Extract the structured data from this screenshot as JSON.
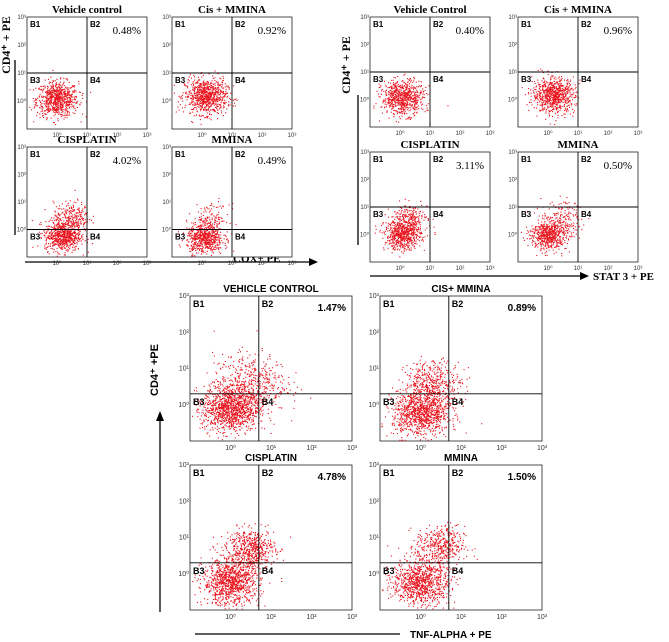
{
  "figure": {
    "accent_color": "#e8141e",
    "axis_color": "#000000",
    "quadrant_labels": [
      "B1",
      "B2",
      "B3",
      "B4"
    ]
  },
  "chart_data": [
    {
      "type": "scatter",
      "panel_group": "cox",
      "title": "Vehicle control",
      "q2_percent": "0.48%",
      "x_tick_labels": [
        "10⁰",
        "10¹",
        "10²",
        "10³"
      ],
      "y_tick_labels": [
        "10⁰",
        "10¹",
        "10²",
        "10³"
      ],
      "xscale": "log",
      "yscale": "log",
      "xlim": [
        0.1,
        1000
      ],
      "ylim": [
        0.1,
        1000
      ],
      "gates": {
        "x": 10,
        "y": 10
      },
      "clusters": [
        {
          "x": 1.0,
          "y": 1.2,
          "spread": 0.35,
          "points": 750
        }
      ]
    },
    {
      "type": "scatter",
      "panel_group": "cox",
      "title": "Cis + MMINA",
      "q2_percent": "0.92%",
      "x_tick_labels": [
        "10⁰",
        "10¹",
        "10²",
        "10³"
      ],
      "y_tick_labels": [
        "10⁰",
        "10¹",
        "10²",
        "10³"
      ],
      "xscale": "log",
      "yscale": "log",
      "xlim": [
        0.1,
        1000
      ],
      "ylim": [
        0.1,
        1000
      ],
      "gates": {
        "x": 10,
        "y": 10
      },
      "clusters": [
        {
          "x": 1.3,
          "y": 1.5,
          "spread": 0.35,
          "points": 800
        }
      ]
    },
    {
      "type": "scatter",
      "panel_group": "cox",
      "title": "CISPLATIN",
      "q2_percent": "4.02%",
      "x_tick_labels": [
        "10⁰",
        "10¹",
        "10²",
        "10³"
      ],
      "y_tick_labels": [
        "10⁰",
        "10¹",
        "10²",
        "10³"
      ],
      "xscale": "log",
      "yscale": "log",
      "xlim": [
        0.1,
        1000
      ],
      "ylim": [
        0.1,
        1000
      ],
      "gates": {
        "x": 10,
        "y": 1
      },
      "clusters": [
        {
          "x": 1.5,
          "y": 0.6,
          "spread": 0.3,
          "points": 650
        },
        {
          "x": 3,
          "y": 3,
          "spread": 0.3,
          "points": 250
        }
      ]
    },
    {
      "type": "scatter",
      "panel_group": "cox",
      "title": "MMINA",
      "q2_percent": "0.49%",
      "x_tick_labels": [
        "10⁰",
        "10¹",
        "10²",
        "10³"
      ],
      "y_tick_labels": [
        "10⁰",
        "10¹",
        "10²",
        "10³"
      ],
      "xscale": "log",
      "yscale": "log",
      "xlim": [
        0.1,
        1000
      ],
      "ylim": [
        0.1,
        1000
      ],
      "gates": {
        "x": 10,
        "y": 1
      },
      "clusters": [
        {
          "x": 1.2,
          "y": 0.5,
          "spread": 0.3,
          "points": 600
        },
        {
          "x": 2,
          "y": 2.5,
          "spread": 0.3,
          "points": 120
        }
      ]
    },
    {
      "type": "scatter",
      "panel_group": "stat3",
      "title": "Vehicle Control",
      "q2_percent": "0.40%",
      "x_tick_labels": [
        "10⁰",
        "10¹",
        "10²",
        "10³"
      ],
      "y_tick_labels": [
        "10⁰",
        "10¹",
        "10²",
        "10³"
      ],
      "xscale": "log",
      "yscale": "log",
      "xlim": [
        0.1,
        1000
      ],
      "ylim": [
        0.1,
        1000
      ],
      "gates": {
        "x": 10,
        "y": 10
      },
      "clusters": [
        {
          "x": 1.2,
          "y": 1.2,
          "spread": 0.35,
          "points": 700
        }
      ]
    },
    {
      "type": "scatter",
      "panel_group": "stat3",
      "title": "Cis + MMINA",
      "q2_percent": "0.96%",
      "x_tick_labels": [
        "10⁰",
        "10¹",
        "10²",
        "10³"
      ],
      "y_tick_labels": [
        "10⁰",
        "10¹",
        "10²",
        "10³"
      ],
      "xscale": "log",
      "yscale": "log",
      "xlim": [
        0.1,
        1000
      ],
      "ylim": [
        0.1,
        1000
      ],
      "gates": {
        "x": 10,
        "y": 10
      },
      "clusters": [
        {
          "x": 1.5,
          "y": 1.5,
          "spread": 0.35,
          "points": 750
        }
      ]
    },
    {
      "type": "scatter",
      "panel_group": "stat3",
      "title": "CISPLATIN",
      "q2_percent": "3.11%",
      "x_tick_labels": [
        "10⁰",
        "10¹",
        "10²",
        "10³"
      ],
      "y_tick_labels": [
        "10⁰",
        "10¹",
        "10²",
        "10³"
      ],
      "xscale": "log",
      "yscale": "log",
      "xlim": [
        0.1,
        1000
      ],
      "ylim": [
        0.1,
        1000
      ],
      "gates": {
        "x": 10,
        "y": 10
      },
      "clusters": [
        {
          "x": 1.2,
          "y": 1.0,
          "spread": 0.3,
          "points": 600
        },
        {
          "x": 2,
          "y": 4,
          "spread": 0.3,
          "points": 220
        }
      ]
    },
    {
      "type": "scatter",
      "panel_group": "stat3",
      "title": "MMINA",
      "q2_percent": "0.50%",
      "x_tick_labels": [
        "10⁰",
        "10¹",
        "10²",
        "10³"
      ],
      "y_tick_labels": [
        "10⁰",
        "10¹",
        "10²",
        "10³"
      ],
      "xscale": "log",
      "yscale": "log",
      "xlim": [
        0.1,
        1000
      ],
      "ylim": [
        0.1,
        1000
      ],
      "gates": {
        "x": 10,
        "y": 10
      },
      "clusters": [
        {
          "x": 1.0,
          "y": 1.0,
          "spread": 0.3,
          "points": 600
        },
        {
          "x": 3,
          "y": 4,
          "spread": 0.35,
          "points": 150
        }
      ]
    },
    {
      "type": "scatter",
      "panel_group": "tnf",
      "title": "VEHICLE CONTROL",
      "q2_percent": "1.47%",
      "x_tick_labels": [
        "10⁰",
        "10¹",
        "10²",
        "10³"
      ],
      "y_tick_labels": [
        "10⁰",
        "10¹",
        "10²",
        "10³"
      ],
      "xscale": "log",
      "yscale": "log",
      "xlim": [
        0.1,
        1000
      ],
      "ylim": [
        0.1,
        1000
      ],
      "gates": {
        "x": 5,
        "y": 2
      },
      "clusters": [
        {
          "x": 1.0,
          "y": 0.8,
          "spread": 0.35,
          "points": 1100
        },
        {
          "x": 3,
          "y": 4,
          "spread": 0.45,
          "points": 500
        }
      ]
    },
    {
      "type": "scatter",
      "panel_group": "tnf",
      "title": "CIS+ MMINA",
      "q2_percent": "0.89%",
      "x_tick_labels": [
        "10⁰",
        "10¹",
        "10²",
        "10³"
      ],
      "y_tick_labels": [
        "10⁰",
        "10¹",
        "10²",
        "10³"
      ],
      "xscale": "log",
      "yscale": "log",
      "xlim": [
        0.1,
        1000
      ],
      "ylim": [
        0.1,
        1000
      ],
      "gates": {
        "x": 5,
        "y": 2
      },
      "clusters": [
        {
          "x": 1.0,
          "y": 0.6,
          "spread": 0.35,
          "points": 1000
        },
        {
          "x": 2,
          "y": 4,
          "spread": 0.35,
          "points": 450
        }
      ]
    },
    {
      "type": "scatter",
      "panel_group": "tnf",
      "title": "CISPLATIN",
      "q2_percent": "4.78%",
      "x_tick_labels": [
        "10⁰",
        "10¹",
        "10²",
        "10³"
      ],
      "y_tick_labels": [
        "10⁰",
        "10¹",
        "10²",
        "10³"
      ],
      "xscale": "log",
      "yscale": "log",
      "xlim": [
        0.1,
        1000
      ],
      "ylim": [
        0.1,
        1000
      ],
      "gates": {
        "x": 5,
        "y": 2
      },
      "clusters": [
        {
          "x": 1.0,
          "y": 0.6,
          "spread": 0.35,
          "points": 1000
        },
        {
          "x": 3,
          "y": 5,
          "spread": 0.3,
          "points": 550
        }
      ]
    },
    {
      "type": "scatter",
      "panel_group": "tnf",
      "title": "MMINA",
      "q2_percent": "1.50%",
      "x_tick_labels": [
        "10⁰",
        "10¹",
        "10²",
        "10³"
      ],
      "y_tick_labels": [
        "10⁰",
        "10¹",
        "10²",
        "10³"
      ],
      "xscale": "log",
      "yscale": "log",
      "xlim": [
        0.1,
        1000
      ],
      "ylim": [
        0.1,
        1000
      ],
      "gates": {
        "x": 5,
        "y": 2
      },
      "clusters": [
        {
          "x": 1.0,
          "y": 0.6,
          "spread": 0.35,
          "points": 950
        },
        {
          "x": 3,
          "y": 6,
          "spread": 0.3,
          "points": 400
        }
      ]
    }
  ],
  "axis_labels": {
    "cox_y": "CD4⁺ + PE",
    "cox_x": "COX+ PE",
    "stat3_y": "CD4⁺ + PE",
    "stat3_x": "STAT 3 + PE",
    "tnf_y": "CD4⁺ +PE",
    "tnf_x": "TNF-ALPHA + PE"
  }
}
